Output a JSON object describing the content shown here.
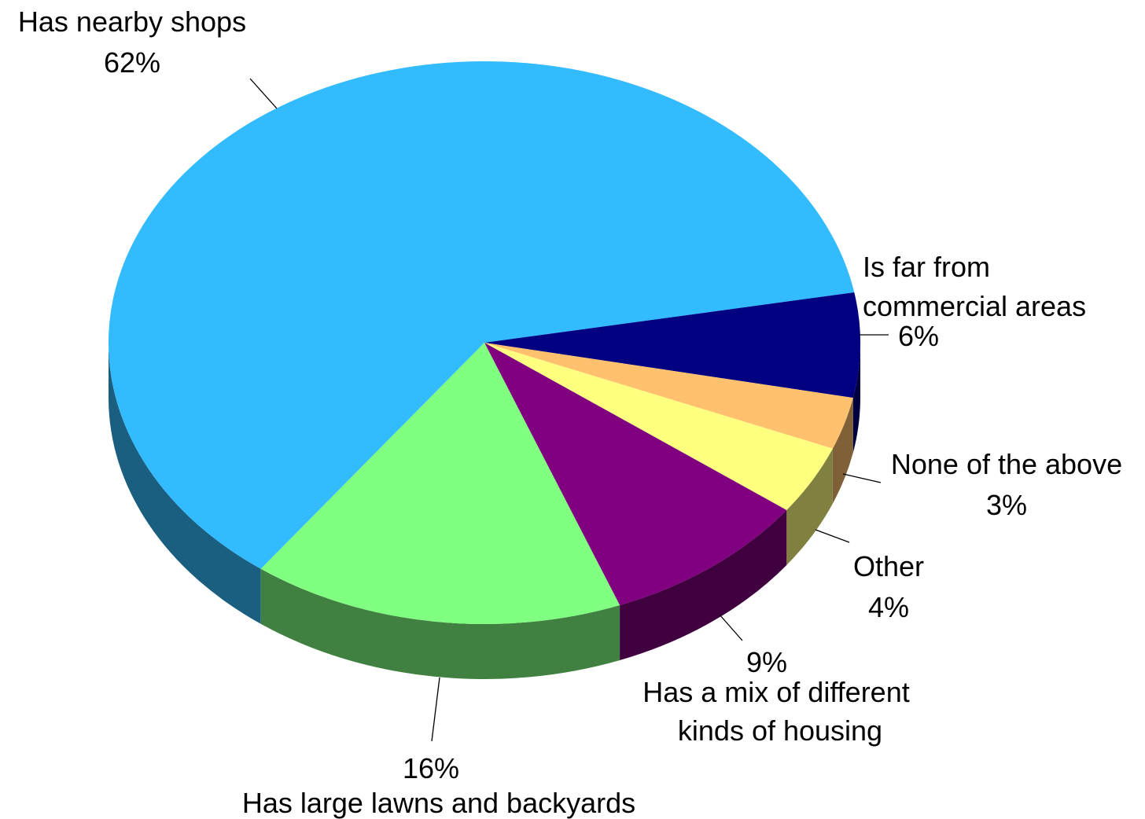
{
  "chart_data": {
    "type": "pie",
    "title": "",
    "legend": "none",
    "slices": [
      {
        "label": "Has nearby shops",
        "value": 62,
        "value_label": "62%",
        "color": "#33BBFF"
      },
      {
        "label": "Is far from commercial areas",
        "value": 6,
        "value_label": "6%",
        "color": "#000080"
      },
      {
        "label": "None of the above",
        "value": 3,
        "value_label": "3%",
        "color": "#FFC16E"
      },
      {
        "label": "Other",
        "value": 4,
        "value_label": "4%",
        "color": "#FFFF80"
      },
      {
        "label": "Has a mix of different kinds of housing",
        "value": 9,
        "value_label": "9%",
        "color": "#800080"
      },
      {
        "label": "Has large lawns and backyards",
        "value": 16,
        "value_label": "16%",
        "color": "#80FF80"
      }
    ]
  }
}
